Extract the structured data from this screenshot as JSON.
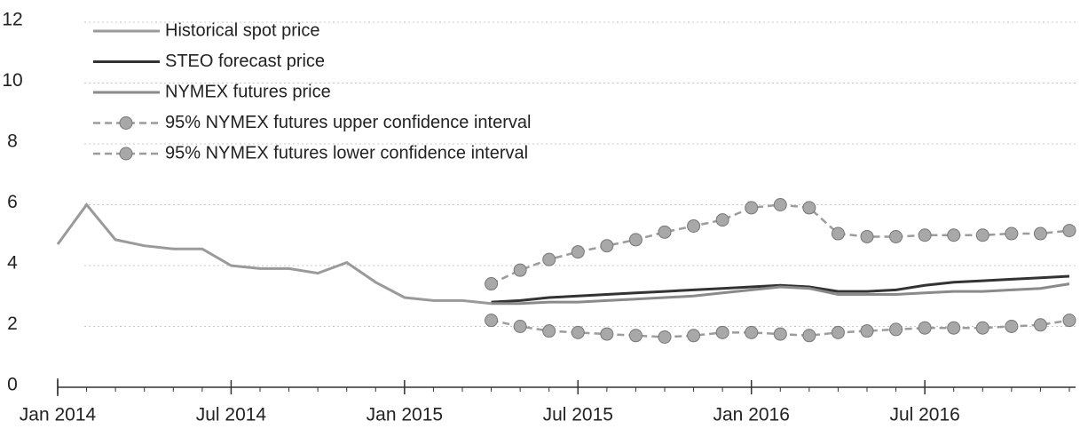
{
  "chart_data": {
    "type": "line",
    "x": [
      "2014-01",
      "2014-02",
      "2014-03",
      "2014-04",
      "2014-05",
      "2014-06",
      "2014-07",
      "2014-08",
      "2014-09",
      "2014-10",
      "2014-11",
      "2014-12",
      "2015-01",
      "2015-02",
      "2015-03",
      "2015-04",
      "2015-05",
      "2015-06",
      "2015-07",
      "2015-08",
      "2015-09",
      "2015-10",
      "2015-11",
      "2015-12",
      "2016-01",
      "2016-02",
      "2016-03",
      "2016-04",
      "2016-05",
      "2016-06",
      "2016-07",
      "2016-08",
      "2016-09",
      "2016-10",
      "2016-11",
      "2016-12"
    ],
    "xticks": [
      {
        "value": "2014-01",
        "label": "Jan 2014"
      },
      {
        "value": "2014-07",
        "label": "Jul 2014"
      },
      {
        "value": "2015-01",
        "label": "Jan 2015"
      },
      {
        "value": "2015-07",
        "label": "Jul 2015"
      },
      {
        "value": "2016-01",
        "label": "Jan 2016"
      },
      {
        "value": "2016-07",
        "label": "Jul 2016"
      }
    ],
    "ylim": [
      0,
      12
    ],
    "yticks": [
      0,
      2,
      4,
      6,
      8,
      10,
      12
    ],
    "grid": true,
    "legend": "top-left",
    "series": [
      {
        "name": "Historical spot price",
        "color": "#9a9a9a",
        "style": "solid",
        "values": [
          4.7,
          6.0,
          4.85,
          4.65,
          4.55,
          4.55,
          4.0,
          3.9,
          3.9,
          3.75,
          4.1,
          3.45,
          2.95,
          2.85,
          2.85,
          2.75,
          null,
          null,
          null,
          null,
          null,
          null,
          null,
          null,
          null,
          null,
          null,
          null,
          null,
          null,
          null,
          null,
          null,
          null,
          null,
          null
        ]
      },
      {
        "name": "STEO forecast price",
        "color": "#333333",
        "style": "solid",
        "values": [
          null,
          null,
          null,
          null,
          null,
          null,
          null,
          null,
          null,
          null,
          null,
          null,
          null,
          null,
          null,
          2.8,
          2.85,
          2.95,
          3.0,
          3.05,
          3.1,
          3.15,
          3.2,
          3.25,
          3.3,
          3.35,
          3.3,
          3.15,
          3.15,
          3.2,
          3.35,
          3.45,
          3.5,
          3.55,
          3.6,
          3.65
        ]
      },
      {
        "name": "NYMEX futures price",
        "color": "#8a8a8a",
        "style": "solid",
        "values": [
          null,
          null,
          null,
          null,
          null,
          null,
          null,
          null,
          null,
          null,
          null,
          null,
          null,
          null,
          null,
          2.75,
          2.75,
          2.8,
          2.8,
          2.85,
          2.9,
          2.95,
          3.0,
          3.1,
          3.2,
          3.3,
          3.25,
          3.05,
          3.05,
          3.05,
          3.1,
          3.15,
          3.15,
          3.2,
          3.25,
          3.4
        ]
      },
      {
        "name": "95% NYMEX futures upper confidence interval",
        "color": "#9c9c9c",
        "style": "dashed-marker",
        "values": [
          null,
          null,
          null,
          null,
          null,
          null,
          null,
          null,
          null,
          null,
          null,
          null,
          null,
          null,
          null,
          3.4,
          3.85,
          4.2,
          4.45,
          4.65,
          4.85,
          5.1,
          5.3,
          5.5,
          5.9,
          6.0,
          5.9,
          5.05,
          4.95,
          4.95,
          5.0,
          5.0,
          5.0,
          5.05,
          5.05,
          5.15
        ]
      },
      {
        "name": "95% NYMEX futures lower confidence interval",
        "color": "#9c9c9c",
        "style": "dashed-marker",
        "values": [
          null,
          null,
          null,
          null,
          null,
          null,
          null,
          null,
          null,
          null,
          null,
          null,
          null,
          null,
          null,
          2.2,
          2.0,
          1.85,
          1.8,
          1.75,
          1.7,
          1.65,
          1.7,
          1.8,
          1.8,
          1.75,
          1.7,
          1.8,
          1.85,
          1.9,
          1.95,
          1.95,
          1.95,
          2.0,
          2.05,
          2.2
        ]
      }
    ]
  }
}
